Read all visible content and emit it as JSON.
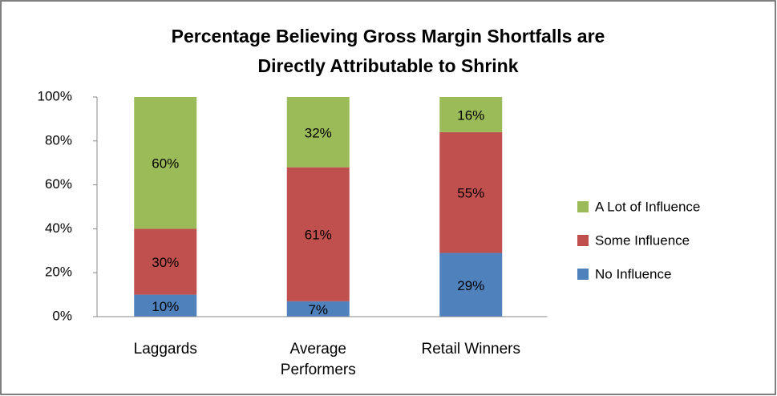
{
  "chart_data": {
    "type": "stacked_bar",
    "title": [
      "Percentage Believing Gross Margin Shortfalls are",
      "Directly Attributable to Shrink"
    ],
    "categories": [
      "Laggards",
      "Average Performers",
      "Retail Winners"
    ],
    "series": [
      {
        "name": "No Influence",
        "color": "#4f81bd",
        "values": [
          10,
          7,
          29
        ],
        "value_labels": [
          "10%",
          "7%",
          "29%"
        ]
      },
      {
        "name": "Some Influence",
        "color": "#c0504d",
        "values": [
          30,
          61,
          55
        ],
        "value_labels": [
          "30%",
          "61%",
          "55%"
        ]
      },
      {
        "name": "A Lot of Influence",
        "color": "#9bbb59",
        "values": [
          60,
          32,
          16
        ],
        "value_labels": [
          "60%",
          "32%",
          "16%"
        ]
      }
    ],
    "ylim": [
      0,
      100
    ],
    "yticks": [
      {
        "value": 0,
        "label": "0%"
      },
      {
        "value": 20,
        "label": "20%"
      },
      {
        "value": 40,
        "label": "40%"
      },
      {
        "value": 60,
        "label": "60%"
      },
      {
        "value": 80,
        "label": "80%"
      },
      {
        "value": 100,
        "label": "100%"
      }
    ],
    "legend": "right"
  }
}
